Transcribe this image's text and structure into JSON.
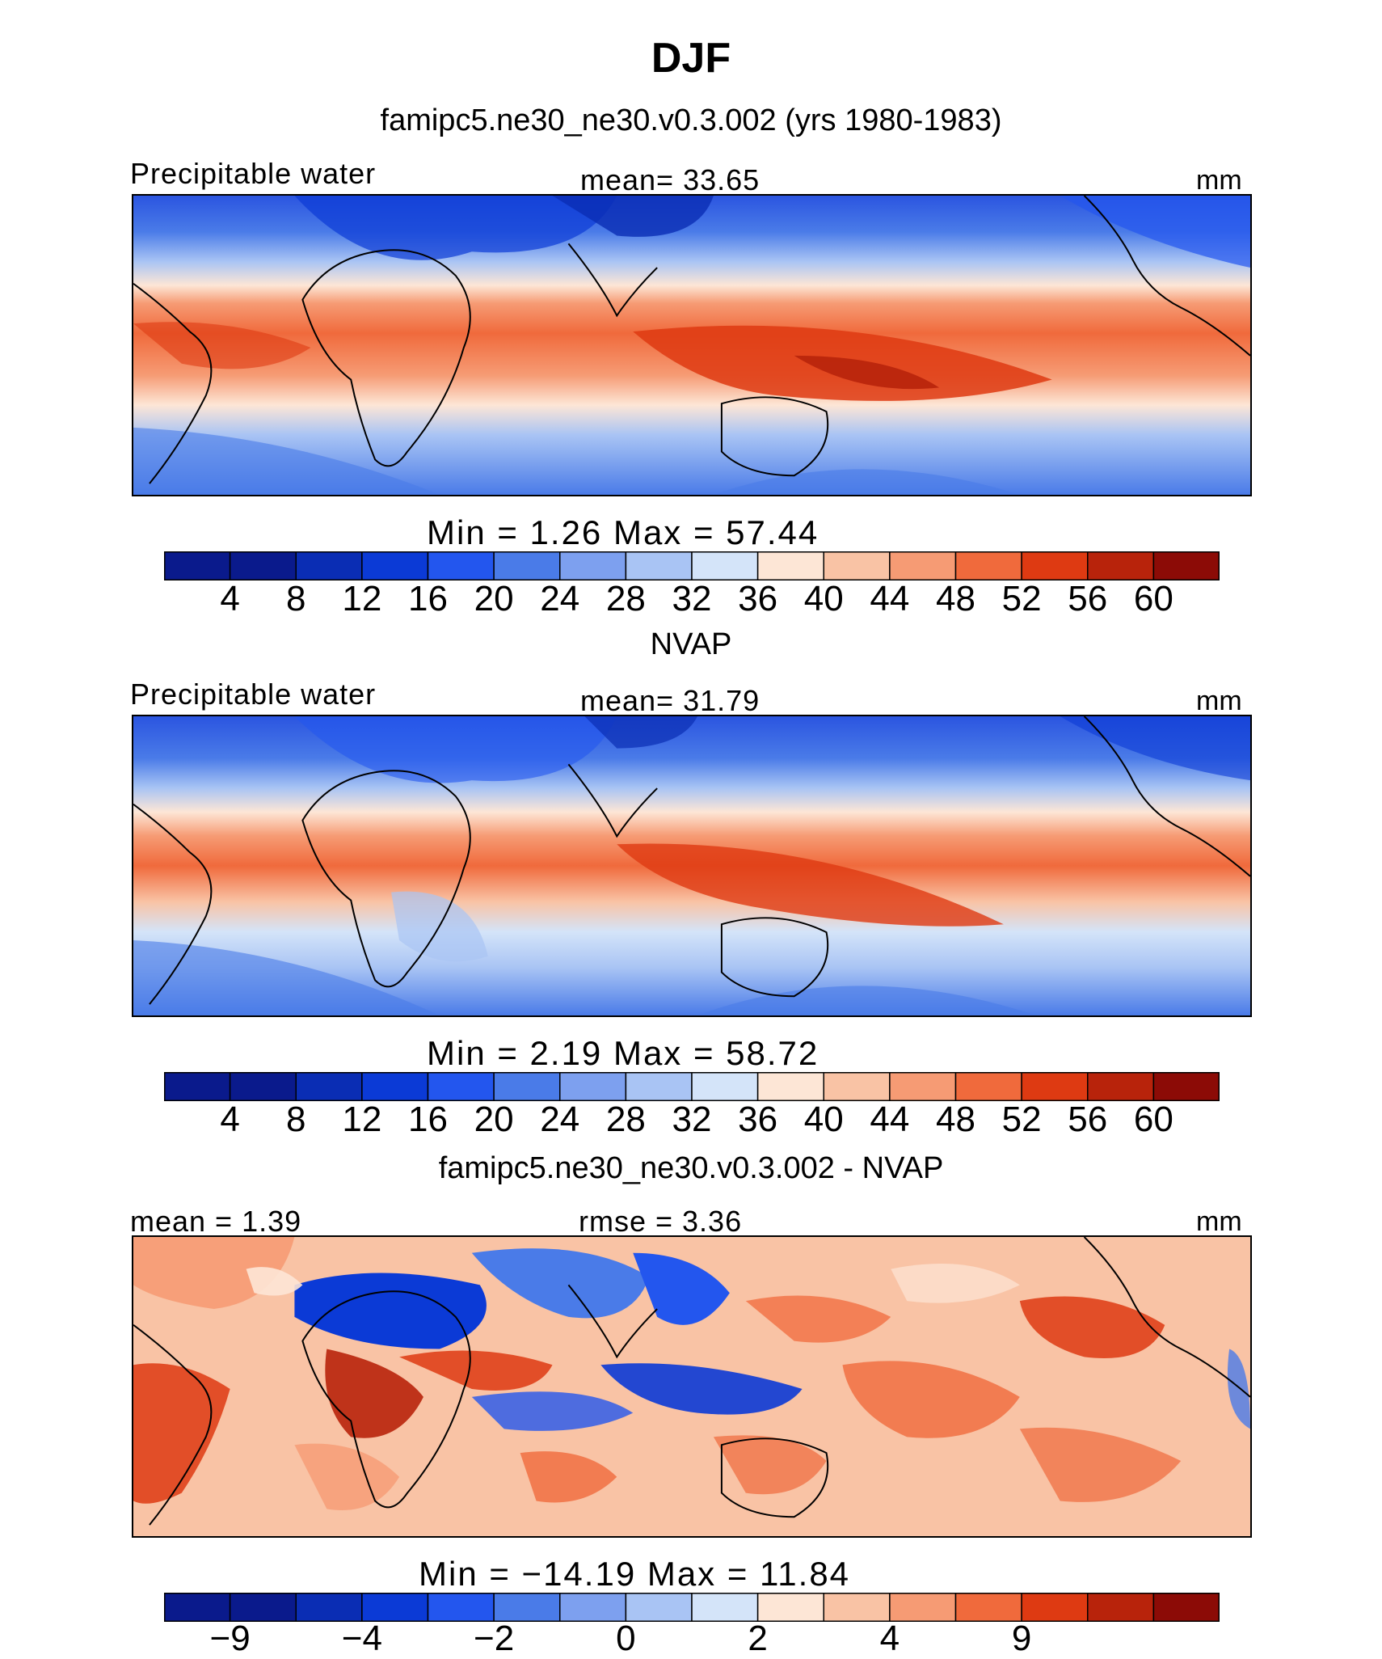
{
  "figure": {
    "title": "DJF",
    "variable_label": "Precipitable water",
    "units": "mm"
  },
  "colors": {
    "abs_scale": [
      "#0a1a8c",
      "#0a2db4",
      "#0b3ad6",
      "#2356ee",
      "#4a7be8",
      "#7da0ef",
      "#a9c4f4",
      "#d4e4f9",
      "#fde6d6",
      "#f9c3a5",
      "#f69b74",
      "#f06a3c",
      "#de3a12",
      "#b8230b",
      "#8c0b06"
    ],
    "diff_scale": [
      "#0a1a8c",
      "#0a2db4",
      "#0b3ad6",
      "#2356ee",
      "#4a7be8",
      "#7da0ef",
      "#a9c4f4",
      "#d4e4f9",
      "#fde6d6",
      "#f9c3a5",
      "#f69b74",
      "#f06a3c",
      "#de3a12",
      "#b8230b",
      "#8c0b06"
    ]
  },
  "panels": [
    {
      "subtitle": "famipc5.ne30_ne30.v0.3.002 (yrs 1980-1983)",
      "left_label": "Precipitable water",
      "center_label": "mean=   33.65",
      "units": "mm",
      "minmax": "Min  =     1.26  Max  =    57.44"
    },
    {
      "subtitle": "NVAP",
      "left_label": "Precipitable water",
      "center_label": "mean=   31.79",
      "units": "mm",
      "minmax": "Min  =     2.19  Max  =    58.72"
    },
    {
      "subtitle": "famipc5.ne30_ne30.v0.3.002 - NVAP",
      "left_label": "mean  =     1.39",
      "center_label": "rmse  =     3.36",
      "units": "mm",
      "minmax": "Min  =  −14.19  Max  =    11.84"
    }
  ],
  "chart_data": [
    {
      "type": "heatmap",
      "title": "famipc5.ne30_ne30.v0.3.002 (yrs 1980-1983)",
      "variable": "Precipitable water",
      "units": "mm",
      "mean": 33.65,
      "min": 1.26,
      "max": 57.44,
      "colorbar_levels": [
        4,
        8,
        12,
        16,
        20,
        24,
        28,
        32,
        36,
        40,
        44,
        48,
        52,
        56,
        60
      ],
      "colorbar_tick_labels": [
        "4",
        "8",
        "12",
        "16",
        "20",
        "24",
        "28",
        "32",
        "36",
        "40",
        "44",
        "48",
        "52",
        "56",
        "60"
      ]
    },
    {
      "type": "heatmap",
      "title": "NVAP",
      "variable": "Precipitable water",
      "units": "mm",
      "mean": 31.79,
      "min": 2.19,
      "max": 58.72,
      "colorbar_levels": [
        4,
        8,
        12,
        16,
        20,
        24,
        28,
        32,
        36,
        40,
        44,
        48,
        52,
        56,
        60
      ],
      "colorbar_tick_labels": [
        "4",
        "8",
        "12",
        "16",
        "20",
        "24",
        "28",
        "32",
        "36",
        "40",
        "44",
        "48",
        "52",
        "56",
        "60"
      ]
    },
    {
      "type": "heatmap",
      "title": "famipc5.ne30_ne30.v0.3.002 - NVAP",
      "units": "mm",
      "mean": 1.39,
      "rmse": 3.36,
      "min": -14.19,
      "max": 11.84,
      "colorbar_tick_labels": [
        "−9",
        "−4",
        "−2",
        "0",
        "2",
        "4",
        "9"
      ]
    }
  ]
}
